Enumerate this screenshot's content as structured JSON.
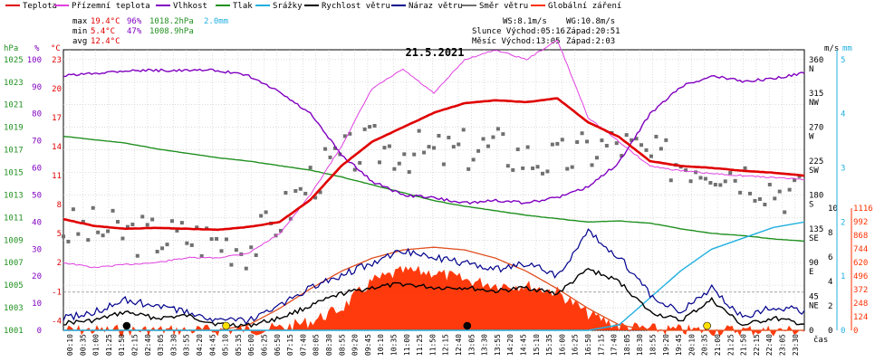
{
  "chart_data": {
    "type": "line",
    "title": "21.5.2021",
    "legend": [
      {
        "name": "Teplota",
        "color": "#e00000"
      },
      {
        "name": "Přízemní teplota",
        "color": "#e040e0"
      },
      {
        "name": "Vlhkost",
        "color": "#8000c0"
      },
      {
        "name": "Tlak",
        "color": "#209020"
      },
      {
        "name": "Srážky",
        "color": "#20b0e0"
      },
      {
        "name": "Rychlost větru",
        "color": "#000000"
      },
      {
        "name": "Náraz větru",
        "color": "#00008c"
      },
      {
        "name": "Směr větru",
        "color": "#707070"
      },
      {
        "name": "Globální záření",
        "color": "#ff3000"
      }
    ],
    "stats": {
      "max_label": "max",
      "max_temp": "19.4°C",
      "max_hum": "96%",
      "max_press": "1018.2hPa",
      "max_rain": "2.0mm",
      "min_label": "min",
      "min_temp": "5.4°C",
      "min_hum": "47%",
      "min_press": "1008.9hPa",
      "avg_label": "avg",
      "avg_temp": "12.4°C",
      "ws": "WS:8.1m/s",
      "wg": "WG:10.8m/s",
      "sun": "Slunce Východ:05:16",
      "sun_set": "Západ:20:51",
      "moon": "Měsíc  Východ:13:05",
      "moon_set": "Západ:2:03"
    },
    "axes": {
      "hpa_unit": "hPa",
      "hpa_ticks": [
        "1025",
        "1023",
        "1021",
        "1019",
        "1017",
        "1015",
        "1013",
        "1011",
        "1009",
        "1007",
        "1005",
        "1003",
        "1001"
      ],
      "pct_unit": "%",
      "pct_ticks": [
        "100",
        "90",
        "80",
        "70",
        "60",
        "50",
        "40",
        "30",
        "20",
        "10",
        "0"
      ],
      "c_unit": "°C",
      "c_ticks": [
        "23",
        "20",
        "17",
        "14",
        "11",
        "8",
        "5",
        "2",
        "-1",
        "-4"
      ],
      "dir_unit": "m/s",
      "dir_ticks": [
        "360",
        "315",
        "270",
        "225",
        "180",
        "135",
        "90",
        "45",
        "0"
      ],
      "dir_labels": [
        "N",
        "NW",
        "W",
        "SW",
        "S",
        "SE",
        "E",
        "NE"
      ],
      "ms_ticks": [
        "10",
        "8",
        "6",
        "4",
        "2",
        "0"
      ],
      "mm_unit": "mm",
      "mm_ticks": [
        "5",
        "4",
        "3",
        "2",
        "1",
        "0"
      ],
      "wm_ticks": [
        "1116",
        "992",
        "868",
        "744",
        "620",
        "496",
        "372",
        "248",
        "124",
        "0"
      ],
      "time_label": "čas",
      "time_ticks": [
        "00:10",
        "00:35",
        "01:00",
        "01:25",
        "01:50",
        "02:15",
        "02:40",
        "03:05",
        "03:30",
        "03:55",
        "04:20",
        "04:45",
        "05:10",
        "05:35",
        "06:00",
        "06:25",
        "06:50",
        "07:15",
        "07:40",
        "08:05",
        "08:30",
        "08:55",
        "09:20",
        "09:45",
        "10:10",
        "10:35",
        "11:00",
        "11:25",
        "11:50",
        "12:15",
        "12:40",
        "13:05",
        "13:30",
        "13:55",
        "14:20",
        "14:45",
        "15:10",
        "15:35",
        "16:00",
        "16:25",
        "16:50",
        "17:15",
        "17:40",
        "18:05",
        "18:30",
        "18:55",
        "19:20",
        "19:45",
        "20:10",
        "20:35",
        "21:00",
        "21:25",
        "21:50",
        "22:15",
        "22:40",
        "23:05",
        "23:30"
      ]
    },
    "x_hours": [
      0,
      1,
      2,
      3,
      4,
      5,
      6,
      7,
      8,
      9,
      10,
      11,
      12,
      13,
      14,
      15,
      16,
      17,
      18,
      19,
      20,
      21,
      22,
      23,
      24
    ],
    "series": [
      {
        "name": "Teplota",
        "unit": "°C",
        "values": [
          6.5,
          5.8,
          5.5,
          5.6,
          5.5,
          5.4,
          5.7,
          6.2,
          8.5,
          12.0,
          14.5,
          16.0,
          17.5,
          18.5,
          18.8,
          18.6,
          19.0,
          16.5,
          15.0,
          12.5,
          12.0,
          11.8,
          11.5,
          11.3,
          11.0
        ]
      },
      {
        "name": "Přízemní teplota",
        "unit": "°C",
        "values": [
          2.0,
          1.5,
          1.8,
          2.0,
          2.5,
          2.5,
          3.0,
          5.0,
          9.0,
          14.0,
          20.0,
          22.0,
          19.5,
          23.0,
          24.0,
          23.0,
          25.0,
          17.0,
          14.5,
          12.0,
          11.5,
          11.2,
          11.0,
          10.8,
          10.6
        ]
      },
      {
        "name": "Vlhkost",
        "unit": "%",
        "values": [
          94,
          95,
          96,
          96,
          96,
          96,
          94,
          88,
          80,
          65,
          55,
          50,
          49,
          47,
          48,
          47,
          49,
          53,
          62,
          80,
          90,
          94,
          92,
          93,
          95
        ]
      },
      {
        "name": "Tlak",
        "unit": "hPa",
        "values": [
          1018.2,
          1017.9,
          1017.6,
          1017.1,
          1016.7,
          1016.3,
          1016.0,
          1015.6,
          1015.2,
          1014.6,
          1013.9,
          1013.2,
          1012.5,
          1012.0,
          1011.6,
          1011.2,
          1010.9,
          1010.6,
          1010.7,
          1010.5,
          1010.0,
          1009.6,
          1009.4,
          1009.1,
          1008.9
        ]
      },
      {
        "name": "Srážky",
        "unit": "mm",
        "values": [
          0,
          0,
          0,
          0,
          0,
          0,
          0,
          0,
          0,
          0,
          0,
          0,
          0,
          0,
          0,
          0,
          0,
          0,
          0.1,
          0.6,
          1.1,
          1.5,
          1.7,
          1.9,
          2.0
        ]
      },
      {
        "name": "Rychlost větru",
        "unit": "m/s",
        "values": [
          0.6,
          0.8,
          1.5,
          1.0,
          1.2,
          0.5,
          0.4,
          1.0,
          2.0,
          3.0,
          3.5,
          3.8,
          3.5,
          3.5,
          3.2,
          3.5,
          3.0,
          5.0,
          4.0,
          1.5,
          0.8,
          2.5,
          0.4,
          1.0,
          0.5
        ]
      },
      {
        "name": "Náraz větru",
        "unit": "m/s",
        "values": [
          1.0,
          1.5,
          2.5,
          2.0,
          1.5,
          0.8,
          0.8,
          2.0,
          3.5,
          4.5,
          5.5,
          6.5,
          6.0,
          5.5,
          5.0,
          5.5,
          4.5,
          8.0,
          6.0,
          3.0,
          1.5,
          3.5,
          1.0,
          2.0,
          1.5
        ]
      },
      {
        "name": "Globální záření",
        "unit": "W/m²",
        "values": [
          0,
          0,
          0,
          0,
          0,
          0,
          5,
          20,
          80,
          200,
          450,
          540,
          530,
          460,
          420,
          410,
          350,
          150,
          40,
          10,
          0,
          0,
          0,
          0,
          0
        ]
      },
      {
        "name": "Globální záření (teoretické)",
        "unit": "W/m²",
        "values": [
          0,
          0,
          0,
          0,
          0,
          0,
          50,
          200,
          380,
          540,
          660,
          735,
          760,
          735,
          660,
          540,
          380,
          200,
          50,
          0,
          0,
          0,
          0,
          0,
          0
        ]
      },
      {
        "name": "Směr větru",
        "unit": "°",
        "values": [
          135,
          135,
          130,
          125,
          125,
          120,
          110,
          150,
          200,
          230,
          245,
          240,
          235,
          240,
          245,
          230,
          225,
          240,
          250,
          230,
          225,
          220,
          210,
          190,
          180
        ]
      }
    ]
  }
}
